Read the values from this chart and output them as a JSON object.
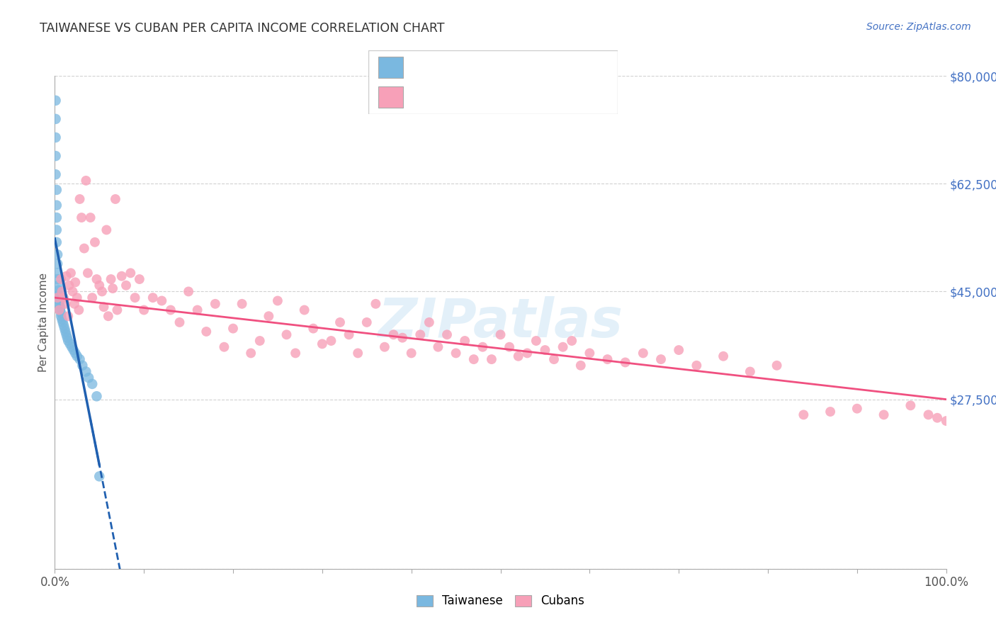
{
  "title": "TAIWANESE VS CUBAN PER CAPITA INCOME CORRELATION CHART",
  "source": "Source: ZipAtlas.com",
  "ylabel": "Per Capita Income",
  "legend_label1": "Taiwanese",
  "legend_label2": "Cubans",
  "watermark": "ZIPatlas",
  "color_taiwanese": "#7ab8e0",
  "color_cuban": "#f7a0b8",
  "color_line_taiwanese": "#2060b0",
  "color_line_cuban": "#f05080",
  "color_title": "#333333",
  "color_source": "#4472c4",
  "color_ytick": "#4472c4",
  "yticks": [
    0,
    27500,
    45000,
    62500,
    80000
  ],
  "ytick_labels": [
    "",
    "$27,500",
    "$45,000",
    "$62,500",
    "$80,000"
  ],
  "taiwanese_x": [
    0.001,
    0.001,
    0.001,
    0.001,
    0.001,
    0.002,
    0.002,
    0.002,
    0.002,
    0.002,
    0.003,
    0.003,
    0.003,
    0.003,
    0.004,
    0.004,
    0.004,
    0.005,
    0.005,
    0.005,
    0.006,
    0.006,
    0.007,
    0.007,
    0.008,
    0.009,
    0.01,
    0.011,
    0.012,
    0.013,
    0.014,
    0.015,
    0.017,
    0.019,
    0.021,
    0.023,
    0.025,
    0.028,
    0.031,
    0.035,
    0.038,
    0.042,
    0.047,
    0.05
  ],
  "taiwanese_y": [
    76000,
    73000,
    70000,
    67000,
    64000,
    61500,
    59000,
    57000,
    55000,
    53000,
    51000,
    49500,
    48000,
    47000,
    46000,
    45200,
    44500,
    44000,
    43500,
    43000,
    42500,
    42000,
    41500,
    41000,
    40500,
    40000,
    39500,
    39000,
    38500,
    38000,
    37500,
    37000,
    36500,
    36000,
    35500,
    35000,
    34500,
    34000,
    33000,
    32000,
    31000,
    30000,
    28000,
    15000
  ],
  "cuban_x": [
    0.003,
    0.005,
    0.007,
    0.008,
    0.01,
    0.012,
    0.013,
    0.015,
    0.016,
    0.018,
    0.02,
    0.022,
    0.023,
    0.025,
    0.027,
    0.028,
    0.03,
    0.033,
    0.035,
    0.037,
    0.04,
    0.042,
    0.045,
    0.047,
    0.05,
    0.053,
    0.055,
    0.058,
    0.06,
    0.063,
    0.065,
    0.068,
    0.07,
    0.075,
    0.08,
    0.085,
    0.09,
    0.095,
    0.1,
    0.11,
    0.12,
    0.13,
    0.14,
    0.15,
    0.16,
    0.17,
    0.18,
    0.19,
    0.2,
    0.21,
    0.22,
    0.23,
    0.24,
    0.25,
    0.26,
    0.27,
    0.28,
    0.29,
    0.3,
    0.31,
    0.32,
    0.33,
    0.34,
    0.35,
    0.36,
    0.37,
    0.38,
    0.39,
    0.4,
    0.41,
    0.42,
    0.43,
    0.44,
    0.45,
    0.46,
    0.47,
    0.48,
    0.49,
    0.5,
    0.51,
    0.52,
    0.53,
    0.54,
    0.55,
    0.56,
    0.57,
    0.58,
    0.59,
    0.6,
    0.62,
    0.64,
    0.66,
    0.68,
    0.7,
    0.72,
    0.75,
    0.78,
    0.81,
    0.84,
    0.87,
    0.9,
    0.93,
    0.96,
    0.98,
    0.99,
    1.0
  ],
  "cuban_y": [
    44000,
    42000,
    47000,
    45000,
    44000,
    43000,
    47500,
    41000,
    46000,
    48000,
    45000,
    43000,
    46500,
    44000,
    42000,
    60000,
    57000,
    52000,
    63000,
    48000,
    57000,
    44000,
    53000,
    47000,
    46000,
    45000,
    42500,
    55000,
    41000,
    47000,
    45500,
    60000,
    42000,
    47500,
    46000,
    48000,
    44000,
    47000,
    42000,
    44000,
    43500,
    42000,
    40000,
    45000,
    42000,
    38500,
    43000,
    36000,
    39000,
    43000,
    35000,
    37000,
    41000,
    43500,
    38000,
    35000,
    42000,
    39000,
    36500,
    37000,
    40000,
    38000,
    35000,
    40000,
    43000,
    36000,
    38000,
    37500,
    35000,
    38000,
    40000,
    36000,
    38000,
    35000,
    37000,
    34000,
    36000,
    34000,
    38000,
    36000,
    34500,
    35000,
    37000,
    35500,
    34000,
    36000,
    37000,
    33000,
    35000,
    34000,
    33500,
    35000,
    34000,
    35500,
    33000,
    34500,
    32000,
    33000,
    25000,
    25500,
    26000,
    25000,
    26500,
    25000,
    24500,
    24000
  ]
}
